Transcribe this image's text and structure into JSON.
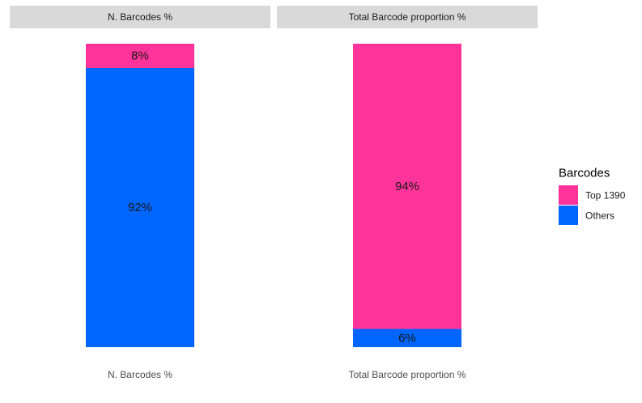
{
  "chart_data": {
    "type": "bar",
    "stacked": true,
    "percent": true,
    "panels": [
      {
        "strip": "N. Barcodes %",
        "category": "N. Barcodes %",
        "segments": [
          {
            "series": "Others",
            "value": 92,
            "label": "92%"
          },
          {
            "series": "Top 1390",
            "value": 8,
            "label": "8%"
          }
        ]
      },
      {
        "strip": "Total Barcode proportion %",
        "category": "Total Barcode proportion %",
        "segments": [
          {
            "series": "Others",
            "value": 6,
            "label": "6%"
          },
          {
            "series": "Top 1390",
            "value": 94,
            "label": "94%"
          }
        ]
      }
    ],
    "legend": {
      "title": "Barcodes",
      "position": "right",
      "items": [
        {
          "name": "Top 1390",
          "color": "#FF3399"
        },
        {
          "name": "Others",
          "color": "#0066FF"
        }
      ]
    },
    "ylim": [
      0,
      100
    ],
    "grid": false,
    "xlabel": "",
    "ylabel": ""
  }
}
